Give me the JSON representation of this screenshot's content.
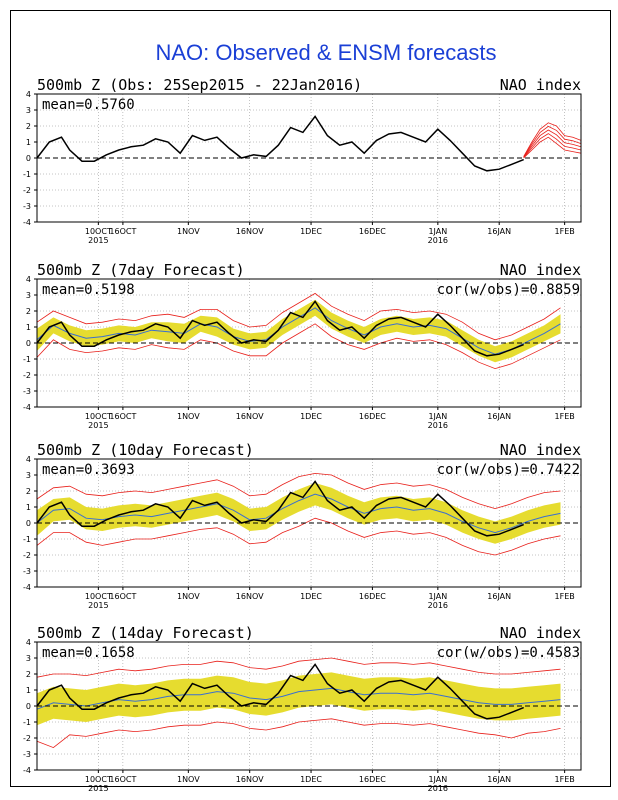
{
  "title": "NAO: Observed & ENSM forecasts",
  "colors": {
    "title": "#1a3fd6",
    "obs": "#000000",
    "ens_member": "#e8201b",
    "ens_mean": "#3a6fd0",
    "spread": "#e6dc2f",
    "grid": "#888888"
  },
  "x_ticks": [
    {
      "label": "10OCT",
      "year": "2015",
      "day": 15
    },
    {
      "label": "16OCT",
      "year": "",
      "day": 21
    },
    {
      "label": "1NOV",
      "year": "",
      "day": 37
    },
    {
      "label": "16NOV",
      "year": "",
      "day": 52
    },
    {
      "label": "1DEC",
      "year": "",
      "day": 67
    },
    {
      "label": "16DEC",
      "year": "",
      "day": 82
    },
    {
      "label": "1JAN",
      "year": "2016",
      "day": 98
    },
    {
      "label": "16JAN",
      "year": "",
      "day": 113
    },
    {
      "label": "1FEB",
      "year": "",
      "day": 129
    }
  ],
  "panels": [
    {
      "left_label": "500mb Z (Obs: 25Sep2015 - 22Jan2016)",
      "right_label": "NAO index",
      "mean": "mean=0.5760",
      "cor": ""
    },
    {
      "left_label": "500mb Z (7day Forecast)",
      "right_label": "NAO index",
      "mean": "mean=0.5198",
      "cor": "cor(w/obs)=0.8859"
    },
    {
      "left_label": "500mb Z (10day Forecast)",
      "right_label": "NAO index",
      "mean": "mean=0.3693",
      "cor": "cor(w/obs)=0.7422"
    },
    {
      "left_label": "500mb Z (14day Forecast)",
      "right_label": "NAO index",
      "mean": "mean=0.1658",
      "cor": "cor(w/obs)=0.4583"
    }
  ],
  "chart_data": {
    "type": "line",
    "x_unit": "days since 25Sep2015",
    "xlim": [
      0,
      133
    ],
    "ylim": [
      -4,
      4
    ],
    "y_ticks": [
      -4,
      -3,
      -2,
      -1,
      0,
      1,
      2,
      3,
      4
    ],
    "observed": {
      "name": "Observed NAO",
      "x": [
        0,
        3,
        6,
        8,
        11,
        14,
        17,
        20,
        23,
        26,
        29,
        32,
        35,
        38,
        41,
        44,
        47,
        50,
        53,
        56,
        59,
        62,
        65,
        68,
        71,
        74,
        77,
        80,
        83,
        86,
        89,
        92,
        95,
        98,
        101,
        104,
        107,
        110,
        113,
        116,
        119
      ],
      "y": [
        0.0,
        1.0,
        1.3,
        0.5,
        -0.2,
        -0.2,
        0.2,
        0.5,
        0.7,
        0.8,
        1.2,
        1.0,
        0.3,
        1.4,
        1.1,
        1.3,
        0.6,
        0.0,
        0.2,
        0.1,
        0.8,
        1.9,
        1.6,
        2.6,
        1.4,
        0.8,
        1.0,
        0.3,
        1.1,
        1.5,
        1.6,
        1.3,
        1.0,
        1.8,
        1.1,
        0.3,
        -0.5,
        -0.8,
        -0.7,
        -0.4,
        -0.1
      ]
    },
    "ensemble_forecast": {
      "x": [
        119,
        121,
        123,
        125,
        127,
        129,
        131,
        133
      ],
      "members_min": [
        0.0,
        0.5,
        1.0,
        1.3,
        0.9,
        0.5,
        0.4,
        0.3
      ],
      "members_max": [
        0.1,
        1.0,
        1.8,
        2.2,
        2.0,
        1.4,
        1.3,
        1.1
      ]
    },
    "forecasts": [
      {
        "lead": "7day",
        "x": [
          0,
          4,
          8,
          12,
          16,
          20,
          24,
          28,
          32,
          36,
          40,
          44,
          48,
          52,
          56,
          60,
          64,
          68,
          72,
          76,
          80,
          84,
          88,
          92,
          96,
          100,
          104,
          108,
          112,
          116,
          120,
          124,
          128
        ],
        "mean": [
          0.2,
          1.1,
          0.6,
          0.3,
          0.4,
          0.6,
          0.5,
          0.8,
          0.7,
          0.6,
          1.2,
          1.0,
          0.4,
          0.1,
          0.2,
          1.0,
          1.6,
          2.2,
          1.4,
          0.9,
          0.5,
          1.0,
          1.2,
          1.0,
          1.1,
          0.9,
          0.3,
          -0.3,
          -0.7,
          -0.4,
          0.1,
          0.6,
          1.2
        ],
        "spread_low": [
          -0.5,
          0.6,
          0.1,
          -0.2,
          -0.1,
          0.1,
          0.0,
          0.3,
          0.1,
          0.0,
          0.7,
          0.4,
          -0.1,
          -0.4,
          -0.3,
          0.5,
          1.1,
          1.7,
          0.9,
          0.4,
          0.0,
          0.5,
          0.7,
          0.5,
          0.6,
          0.4,
          -0.2,
          -0.8,
          -1.2,
          -0.9,
          -0.4,
          0.1,
          0.6
        ],
        "spread_high": [
          0.9,
          1.6,
          1.1,
          0.8,
          0.9,
          1.1,
          1.0,
          1.3,
          1.3,
          1.2,
          1.7,
          1.6,
          0.9,
          0.6,
          0.7,
          1.5,
          2.1,
          2.7,
          1.9,
          1.4,
          1.0,
          1.5,
          1.7,
          1.5,
          1.6,
          1.4,
          0.8,
          0.2,
          -0.2,
          0.1,
          0.6,
          1.1,
          1.8
        ],
        "member_low": [
          -0.9,
          0.2,
          -0.4,
          -0.6,
          -0.5,
          -0.3,
          -0.4,
          -0.1,
          -0.3,
          -0.4,
          0.2,
          0.0,
          -0.5,
          -0.8,
          -0.8,
          0.0,
          0.6,
          1.2,
          0.4,
          -0.1,
          -0.4,
          0.0,
          0.3,
          0.1,
          0.2,
          -0.1,
          -0.6,
          -1.2,
          -1.6,
          -1.3,
          -0.8,
          -0.3,
          0.2
        ],
        "member_high": [
          1.3,
          2.0,
          1.6,
          1.2,
          1.3,
          1.5,
          1.4,
          1.7,
          1.8,
          1.6,
          2.1,
          2.1,
          1.4,
          1.0,
          1.1,
          1.9,
          2.5,
          3.1,
          2.3,
          1.8,
          1.4,
          2.0,
          2.1,
          1.9,
          2.0,
          1.8,
          1.3,
          0.6,
          0.2,
          0.5,
          1.0,
          1.5,
          2.2
        ]
      },
      {
        "lead": "10day",
        "x": [
          0,
          4,
          8,
          12,
          16,
          20,
          24,
          28,
          32,
          36,
          40,
          44,
          48,
          52,
          56,
          60,
          64,
          68,
          72,
          76,
          80,
          84,
          88,
          92,
          96,
          100,
          104,
          108,
          112,
          116,
          120,
          124,
          128
        ],
        "mean": [
          0.0,
          0.8,
          0.9,
          0.3,
          0.2,
          0.4,
          0.5,
          0.4,
          0.6,
          0.8,
          1.0,
          1.2,
          0.8,
          0.2,
          0.3,
          0.9,
          1.4,
          1.8,
          1.5,
          1.0,
          0.6,
          0.9,
          1.0,
          0.8,
          0.9,
          0.6,
          0.1,
          -0.3,
          -0.6,
          -0.3,
          0.1,
          0.4,
          0.6
        ],
        "spread_low": [
          -0.8,
          0.1,
          0.2,
          -0.4,
          -0.5,
          -0.3,
          -0.2,
          -0.3,
          -0.1,
          0.1,
          0.3,
          0.5,
          0.1,
          -0.5,
          -0.4,
          0.2,
          0.7,
          1.1,
          0.8,
          0.3,
          -0.1,
          0.2,
          0.3,
          0.1,
          0.2,
          -0.1,
          -0.6,
          -1.0,
          -1.3,
          -1.0,
          -0.6,
          -0.3,
          -0.1
        ],
        "spread_high": [
          0.8,
          1.5,
          1.6,
          1.0,
          0.9,
          1.1,
          1.2,
          1.1,
          1.3,
          1.5,
          1.7,
          1.9,
          1.5,
          0.9,
          1.0,
          1.6,
          2.1,
          2.5,
          2.2,
          1.7,
          1.3,
          1.6,
          1.7,
          1.5,
          1.6,
          1.3,
          0.8,
          0.4,
          0.1,
          0.4,
          0.8,
          1.1,
          1.3
        ],
        "member_low": [
          -1.4,
          -0.6,
          -0.6,
          -1.2,
          -1.4,
          -1.2,
          -1.0,
          -1.0,
          -0.8,
          -0.6,
          -0.4,
          -0.3,
          -0.7,
          -1.3,
          -1.2,
          -0.6,
          -0.2,
          0.3,
          0.0,
          -0.5,
          -0.9,
          -0.6,
          -0.5,
          -0.7,
          -0.6,
          -0.9,
          -1.4,
          -1.8,
          -2.0,
          -1.7,
          -1.3,
          -1.0,
          -0.8
        ],
        "member_high": [
          1.5,
          2.2,
          2.3,
          1.8,
          1.7,
          1.9,
          2.0,
          1.9,
          2.1,
          2.3,
          2.5,
          2.7,
          2.3,
          1.7,
          1.8,
          2.4,
          2.9,
          3.1,
          3.0,
          2.5,
          2.1,
          2.4,
          2.5,
          2.3,
          2.4,
          2.1,
          1.6,
          1.2,
          0.9,
          1.2,
          1.6,
          1.9,
          2.0
        ]
      },
      {
        "lead": "14day",
        "x": [
          0,
          4,
          8,
          12,
          16,
          20,
          24,
          28,
          32,
          36,
          40,
          44,
          48,
          52,
          56,
          60,
          64,
          68,
          72,
          76,
          80,
          84,
          88,
          92,
          96,
          100,
          104,
          108,
          112,
          116,
          120,
          124,
          128
        ],
        "mean": [
          -0.2,
          0.2,
          0.1,
          0.0,
          0.2,
          0.4,
          0.3,
          0.4,
          0.6,
          0.7,
          0.7,
          0.9,
          0.8,
          0.5,
          0.4,
          0.6,
          0.9,
          1.0,
          1.1,
          0.9,
          0.7,
          0.8,
          0.8,
          0.7,
          0.8,
          0.6,
          0.4,
          0.2,
          0.1,
          0.1,
          0.2,
          0.3,
          0.4
        ],
        "spread_low": [
          -1.2,
          -0.8,
          -0.9,
          -1.0,
          -0.8,
          -0.6,
          -0.7,
          -0.6,
          -0.4,
          -0.3,
          -0.3,
          -0.1,
          -0.2,
          -0.5,
          -0.6,
          -0.4,
          -0.1,
          0.0,
          0.1,
          -0.1,
          -0.3,
          -0.2,
          -0.2,
          -0.3,
          -0.2,
          -0.4,
          -0.6,
          -0.8,
          -0.9,
          -0.9,
          -0.8,
          -0.7,
          -0.6
        ],
        "spread_high": [
          0.8,
          1.2,
          1.1,
          1.0,
          1.2,
          1.4,
          1.3,
          1.4,
          1.6,
          1.7,
          1.7,
          1.9,
          1.8,
          1.5,
          1.4,
          1.6,
          1.9,
          2.0,
          2.1,
          1.9,
          1.7,
          1.8,
          1.8,
          1.7,
          1.8,
          1.6,
          1.4,
          1.2,
          1.1,
          1.1,
          1.2,
          1.3,
          1.4
        ],
        "member_low": [
          -2.2,
          -2.6,
          -1.8,
          -1.9,
          -1.7,
          -1.5,
          -1.6,
          -1.5,
          -1.3,
          -1.2,
          -1.2,
          -1.0,
          -1.1,
          -1.4,
          -1.5,
          -1.3,
          -1.0,
          -0.9,
          -0.8,
          -1.0,
          -1.2,
          -1.1,
          -1.1,
          -1.2,
          -1.1,
          -1.3,
          -1.5,
          -1.7,
          -1.8,
          -2.0,
          -1.7,
          -1.6,
          -1.4
        ],
        "member_high": [
          1.8,
          2.0,
          2.0,
          1.9,
          2.1,
          2.3,
          2.2,
          2.3,
          2.5,
          2.6,
          2.6,
          2.8,
          2.7,
          2.4,
          2.3,
          2.5,
          2.8,
          2.9,
          3.0,
          2.8,
          2.6,
          2.7,
          2.7,
          2.6,
          2.7,
          2.5,
          2.3,
          2.1,
          2.0,
          2.0,
          2.1,
          2.2,
          2.3
        ]
      }
    ]
  }
}
